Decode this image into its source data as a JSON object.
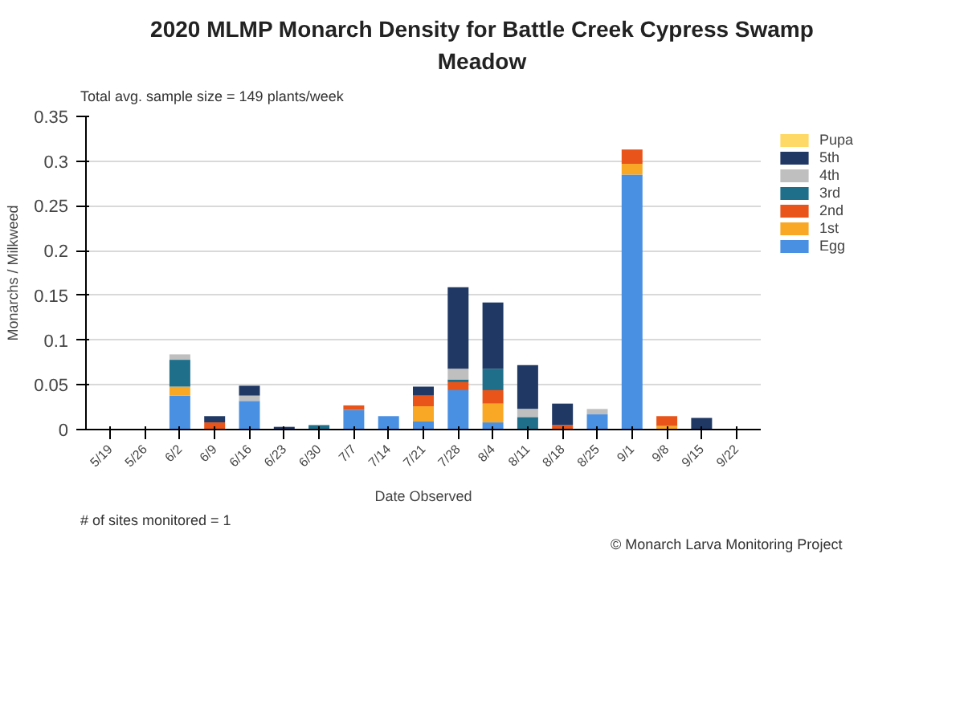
{
  "chart_data": {
    "type": "bar",
    "stacked": true,
    "title": "2020 MLMP Monarch Density for Battle Creek Cypress Swamp Meadow",
    "subtitle": "Total avg. sample size = 149 plants/week",
    "xlabel": "Date Observed",
    "ylabel": "Monarchs / Milkweed",
    "categories": [
      "5/19",
      "5/26",
      "6/2",
      "6/9",
      "6/16",
      "6/23",
      "6/30",
      "7/7",
      "7/14",
      "7/21",
      "7/28",
      "8/4",
      "8/11",
      "8/18",
      "8/25",
      "9/1",
      "9/8",
      "9/15",
      "9/22"
    ],
    "series": [
      {
        "name": "Egg",
        "color": "#4a90e2",
        "values": [
          0,
          0,
          0.038,
          0,
          0.032,
          0,
          0,
          0.022,
          0.015,
          0.009,
          0.044,
          0.008,
          0,
          0,
          0.017,
          0.285,
          0,
          0,
          0
        ]
      },
      {
        "name": "1st",
        "color": "#f9a825",
        "values": [
          0,
          0,
          0.01,
          0,
          0,
          0,
          0,
          0,
          0,
          0.017,
          0,
          0.021,
          0,
          0,
          0,
          0.012,
          0.004,
          0,
          0
        ]
      },
      {
        "name": "2nd",
        "color": "#e8541a",
        "values": [
          0,
          0,
          0,
          0.008,
          0,
          0,
          0,
          0.005,
          0,
          0.012,
          0.009,
          0.015,
          0,
          0.005,
          0,
          0.016,
          0.011,
          0,
          0
        ]
      },
      {
        "name": "3rd",
        "color": "#1f6f8b",
        "values": [
          0,
          0,
          0.03,
          0,
          0,
          0,
          0.005,
          0,
          0,
          0,
          0.003,
          0.024,
          0.014,
          0,
          0,
          0,
          0,
          0,
          0
        ]
      },
      {
        "name": "4th",
        "color": "#bfbfbf",
        "values": [
          0,
          0,
          0.006,
          0,
          0.006,
          0,
          0,
          0,
          0,
          0,
          0.012,
          0,
          0.009,
          0,
          0.006,
          0,
          0,
          0,
          0
        ]
      },
      {
        "name": "5th",
        "color": "#1f3864",
        "values": [
          0,
          0,
          0,
          0.007,
          0.011,
          0.003,
          0,
          0,
          0,
          0.01,
          0.091,
          0.074,
          0.049,
          0.024,
          0,
          0,
          0,
          0.013,
          0
        ]
      },
      {
        "name": "Pupa",
        "color": "#ffd966",
        "values": [
          0,
          0,
          0,
          0,
          0,
          0,
          0,
          0,
          0,
          0,
          0,
          0,
          0,
          0,
          0,
          0,
          0,
          0,
          0
        ]
      }
    ],
    "ylim": [
      0,
      0.35
    ],
    "yticks": [
      0,
      0.05,
      0.1,
      0.15,
      0.2,
      0.25,
      0.3,
      0.35
    ],
    "grid": "y",
    "legend": "right",
    "annotations": [
      "# of sites monitored = 1",
      "© Monarch Larva Monitoring Project"
    ]
  }
}
